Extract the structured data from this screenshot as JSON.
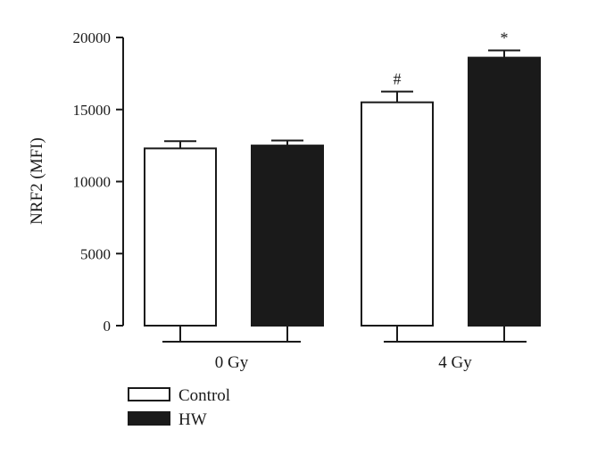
{
  "chart_data": {
    "type": "bar",
    "title": "",
    "xlabel": "",
    "ylabel": "NRF2 (MFI)",
    "ylim": [
      0,
      20000
    ],
    "yticks": [
      0,
      5000,
      10000,
      15000,
      20000
    ],
    "ytick_labels": [
      "0",
      "5000",
      "10000",
      "15000",
      "20000"
    ],
    "categories": [
      "0 Gy",
      "4 Gy"
    ],
    "series": [
      {
        "name": "Control",
        "values": [
          12300,
          15500
        ],
        "errors": [
          500,
          750
        ],
        "color": "#ffffff"
      },
      {
        "name": "HW",
        "values": [
          12500,
          18600
        ],
        "errors": [
          350,
          500
        ],
        "color": "#1a1a1a"
      }
    ],
    "annotations": [
      {
        "category": "4 Gy",
        "series": "Control",
        "text": "#"
      },
      {
        "category": "4 Gy",
        "series": "HW",
        "text": "*"
      }
    ],
    "legend": {
      "placement": "bottom-left",
      "entries": [
        "Control",
        "HW"
      ]
    },
    "grid": false
  }
}
